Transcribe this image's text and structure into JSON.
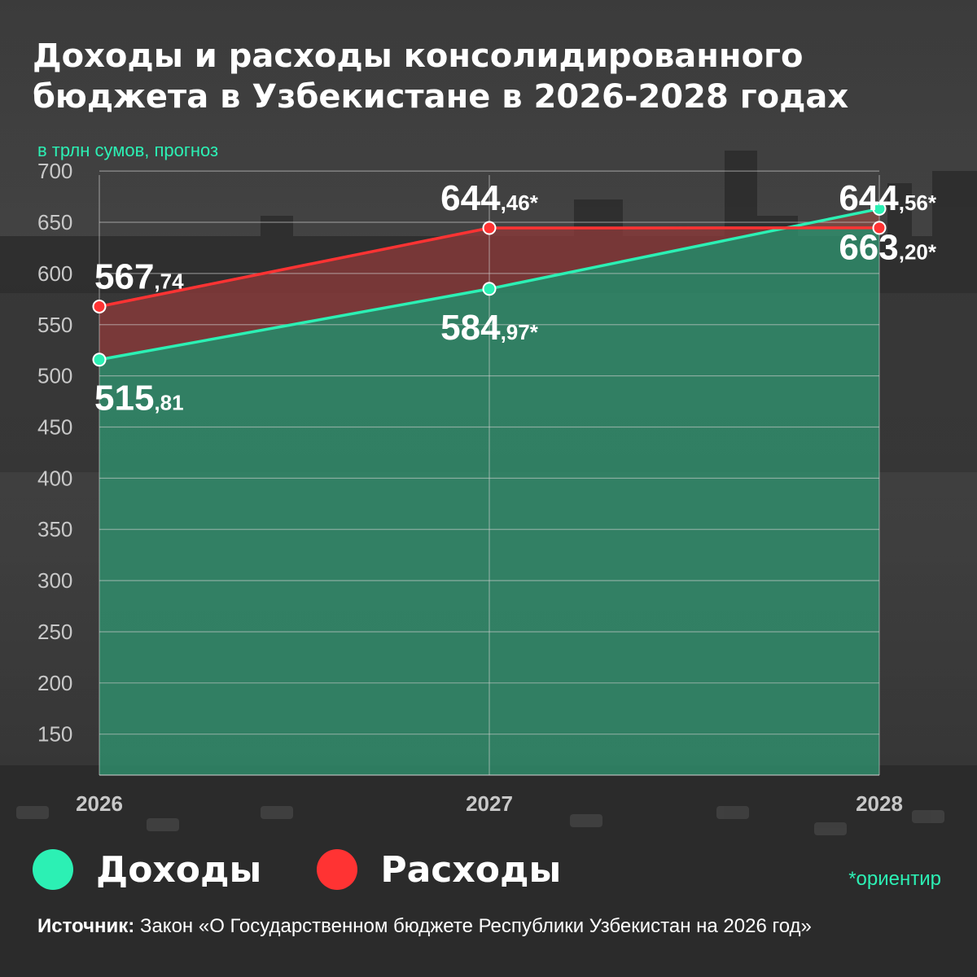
{
  "header": {
    "title_line1": "Доходы и расходы консолидированного",
    "title_line2": "бюджета в Узбекистане в 2026-2028 годах",
    "subtitle": "в трлн сумов, прогноз"
  },
  "colors": {
    "income": "#2cf0b4",
    "expense": "#ff3333",
    "income_fill": "#2f8f6c",
    "expense_fill": "#8a3a3a",
    "grid": "#cfcfcf",
    "axis_text": "#c8c8c8"
  },
  "chart_data": {
    "type": "area",
    "title": "Доходы и расходы консолидированного бюджета в Узбекистане в 2026-2028 годах",
    "subtitle": "в трлн сумов, прогноз",
    "x": [
      "2026",
      "2027",
      "2028"
    ],
    "y_ticks": [
      150,
      200,
      250,
      300,
      350,
      400,
      450,
      500,
      550,
      600,
      650,
      700
    ],
    "ylim": [
      110,
      720
    ],
    "grid": true,
    "legend_position": "bottom-left",
    "series": [
      {
        "name": "Доходы",
        "color": "#2cf0b4",
        "values": [
          515.81,
          584.97,
          663.2
        ],
        "labels": [
          {
            "int": "515",
            "dec": ",81",
            "star": ""
          },
          {
            "int": "584",
            "dec": ",97",
            "star": "*"
          },
          {
            "int": "663",
            "dec": ",20",
            "star": "*"
          }
        ],
        "label_side": [
          "below",
          "below",
          "below"
        ]
      },
      {
        "name": "Расходы",
        "color": "#ff3333",
        "values": [
          567.74,
          644.46,
          644.56
        ],
        "labels": [
          {
            "int": "567",
            "dec": ",74",
            "star": ""
          },
          {
            "int": "644",
            "dec": ",46",
            "star": "*"
          },
          {
            "int": "644",
            "dec": ",56",
            "star": "*"
          }
        ],
        "label_side": [
          "above",
          "above",
          "above"
        ]
      }
    ]
  },
  "legend": {
    "income_label": "Доходы",
    "expense_label": "Расходы"
  },
  "footnote": "*ориентир",
  "source": {
    "label": "Источник:",
    "text": " Закон «О Государственном бюджете Республики Узбекистан на 2026 год»"
  }
}
